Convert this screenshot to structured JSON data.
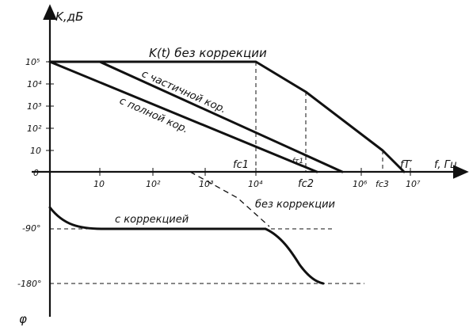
{
  "y_axis": {
    "label": "K,дБ",
    "phase_label": "φ"
  },
  "x_axis": {
    "label": "f, Гц"
  },
  "y_ticks": [
    "10⁵",
    "10⁴",
    "10³",
    "10²",
    "10",
    "0"
  ],
  "x_ticks": [
    "10",
    "10²",
    "10³",
    "10⁴",
    "10⁶",
    "10⁷"
  ],
  "phase_ticks": [
    "-90°",
    "-180°"
  ],
  "freq_marks": {
    "fc1": "fc1",
    "fc2": "fc2",
    "fc3": "fc3",
    "ft1": "fт1",
    "fT": "fT′"
  },
  "curves": {
    "no_correction": "K(t) без коррекции",
    "partial": "с частичной кор.",
    "full": "с полной кор.",
    "phase_with": "с коррекцией",
    "phase_without": "без коррекции"
  }
}
